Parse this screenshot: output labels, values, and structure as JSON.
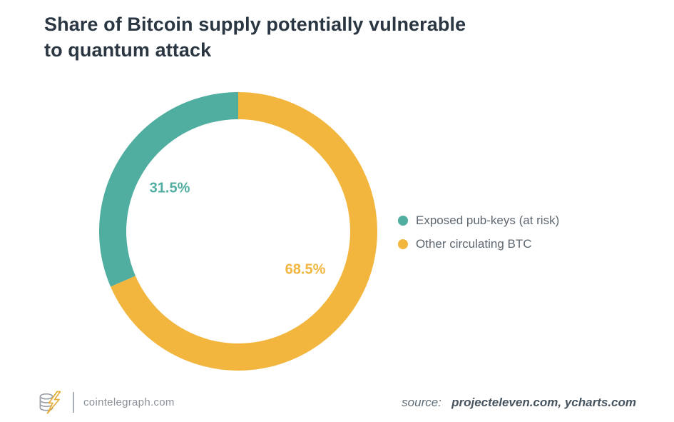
{
  "header": {
    "title": "Share of Bitcoin supply potentially vulnerable to quantum attack",
    "title_lines": [
      "Share of Bitcoin supply potentially vulnerable",
      "to quantum attack"
    ]
  },
  "chart_data": {
    "type": "pie",
    "subtype": "donut",
    "title": "Share of Bitcoin supply potentially vulnerable to quantum attack",
    "categories": [
      "Exposed pub-keys (at risk)",
      "Other circulating BTC"
    ],
    "values": [
      31.5,
      68.5
    ],
    "unit": "%",
    "data_labels": [
      "31.5%",
      "68.5%"
    ],
    "colors": [
      "#4FAE9F",
      "#F2B63F"
    ],
    "start_angle": "top",
    "direction": "first-slice-counterclockwise-from-top",
    "inner_radius_ratio": 0.805,
    "legend_position": "right",
    "legend": [
      {
        "label": "Exposed pub-keys (at risk)",
        "color": "#4FAE9F"
      },
      {
        "label": "Other circulating BTC",
        "color": "#F2B63F"
      }
    ]
  },
  "footer": {
    "logo_icon": "cointelegraph-coin-stack-lightning-icon",
    "brand": "cointelegraph.com",
    "source_prefix": "source:",
    "source_domains": "projecteleven.com, ycharts.com"
  }
}
